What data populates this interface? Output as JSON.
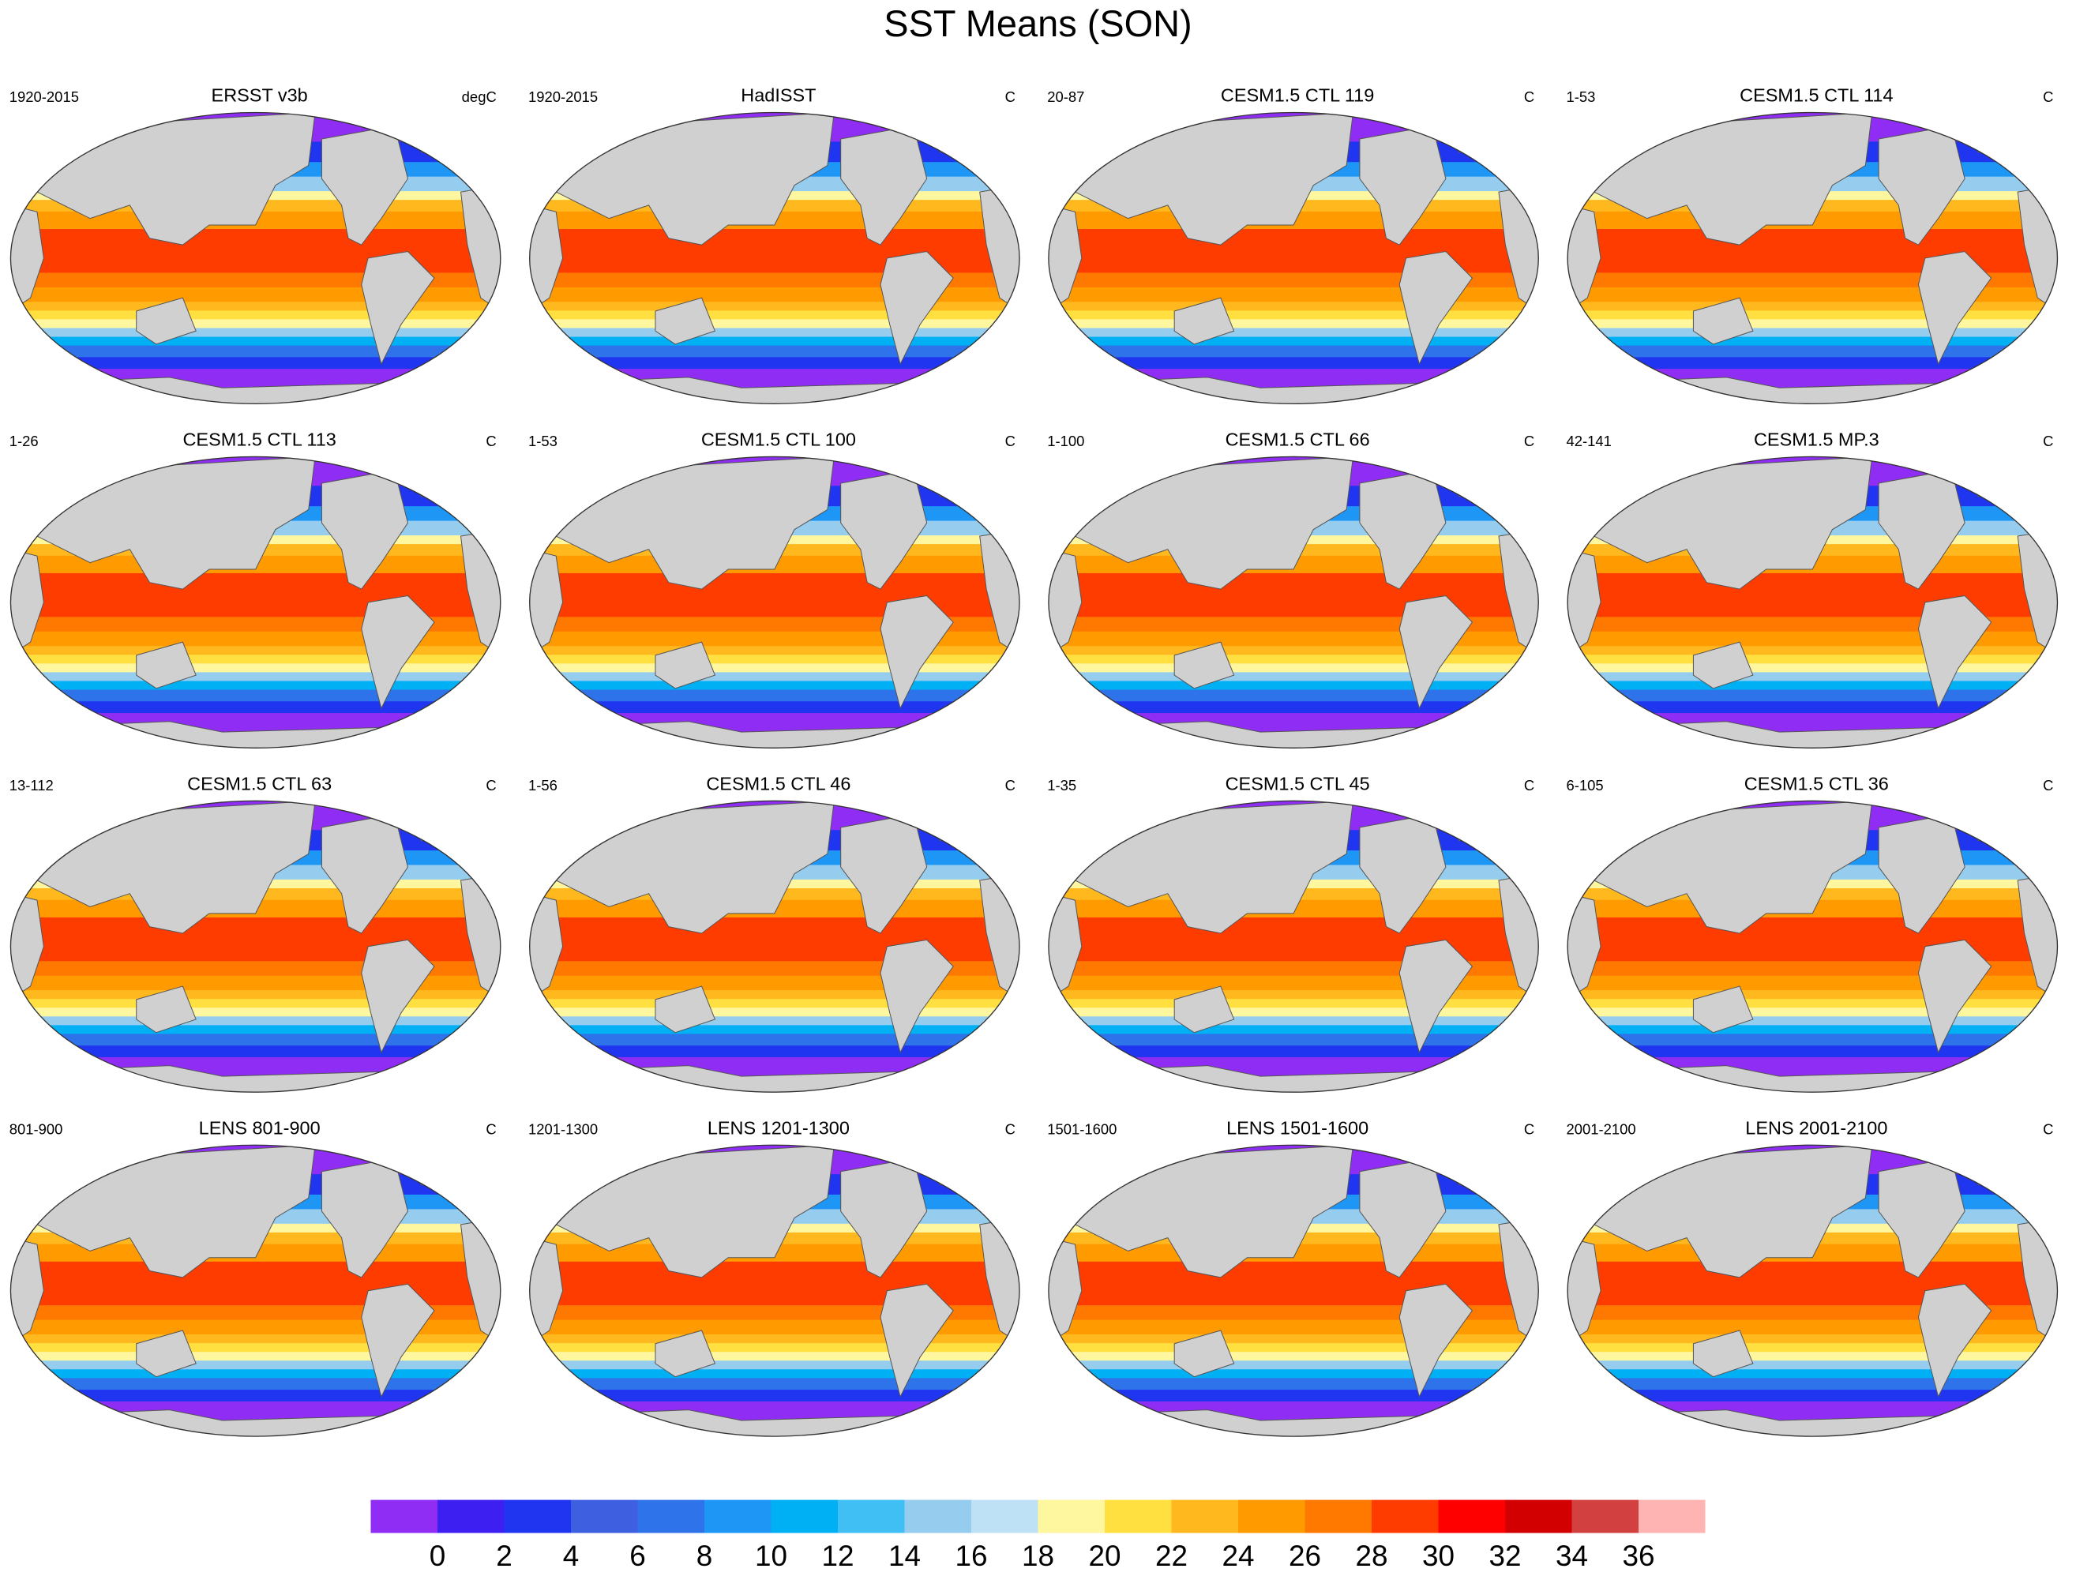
{
  "title": "SST Means (SON)",
  "panels": [
    {
      "title": "ERSST v3b",
      "left": "1920-2015",
      "right": "degC"
    },
    {
      "title": "HadISST",
      "left": "1920-2015",
      "right": "C"
    },
    {
      "title": "CESM1.5 CTL 119",
      "left": "20-87",
      "right": "C"
    },
    {
      "title": "CESM1.5 CTL 114",
      "left": "1-53",
      "right": "C"
    },
    {
      "title": "CESM1.5 CTL 113",
      "left": "1-26",
      "right": "C"
    },
    {
      "title": "CESM1.5 CTL 100",
      "left": "1-53",
      "right": "C"
    },
    {
      "title": "CESM1.5 CTL 66",
      "left": "1-100",
      "right": "C"
    },
    {
      "title": "CESM1.5 MP.3",
      "left": "42-141",
      "right": "C"
    },
    {
      "title": "CESM1.5 CTL 63",
      "left": "13-112",
      "right": "C"
    },
    {
      "title": "CESM1.5 CTL 46",
      "left": "1-56",
      "right": "C"
    },
    {
      "title": "CESM1.5 CTL 45",
      "left": "1-35",
      "right": "C"
    },
    {
      "title": "CESM1.5 CTL 36",
      "left": "6-105",
      "right": "C"
    },
    {
      "title": "LENS 801-900",
      "left": "801-900",
      "right": "C"
    },
    {
      "title": "LENS 1201-1300",
      "left": "1201-1300",
      "right": "C"
    },
    {
      "title": "LENS 1501-1600",
      "left": "1501-1600",
      "right": "C"
    },
    {
      "title": "LENS 2001-2100",
      "left": "2001-2100",
      "right": "C"
    }
  ],
  "colorbar": {
    "colors": [
      "#8f2df5",
      "#3d1ff2",
      "#1f35f0",
      "#3d5fe0",
      "#2e73ea",
      "#1e96f5",
      "#00b0f5",
      "#40bff5",
      "#96cdee",
      "#bfe1f5",
      "#fff6a0",
      "#ffe040",
      "#ffb81e",
      "#ff9a00",
      "#ff7800",
      "#ff3c00",
      "#ff0000",
      "#d20000",
      "#d24040",
      "#ffb4b4"
    ],
    "ticks": [
      0,
      2,
      4,
      6,
      8,
      10,
      12,
      14,
      16,
      18,
      20,
      22,
      24,
      26,
      28,
      30,
      32,
      34,
      36
    ]
  }
}
